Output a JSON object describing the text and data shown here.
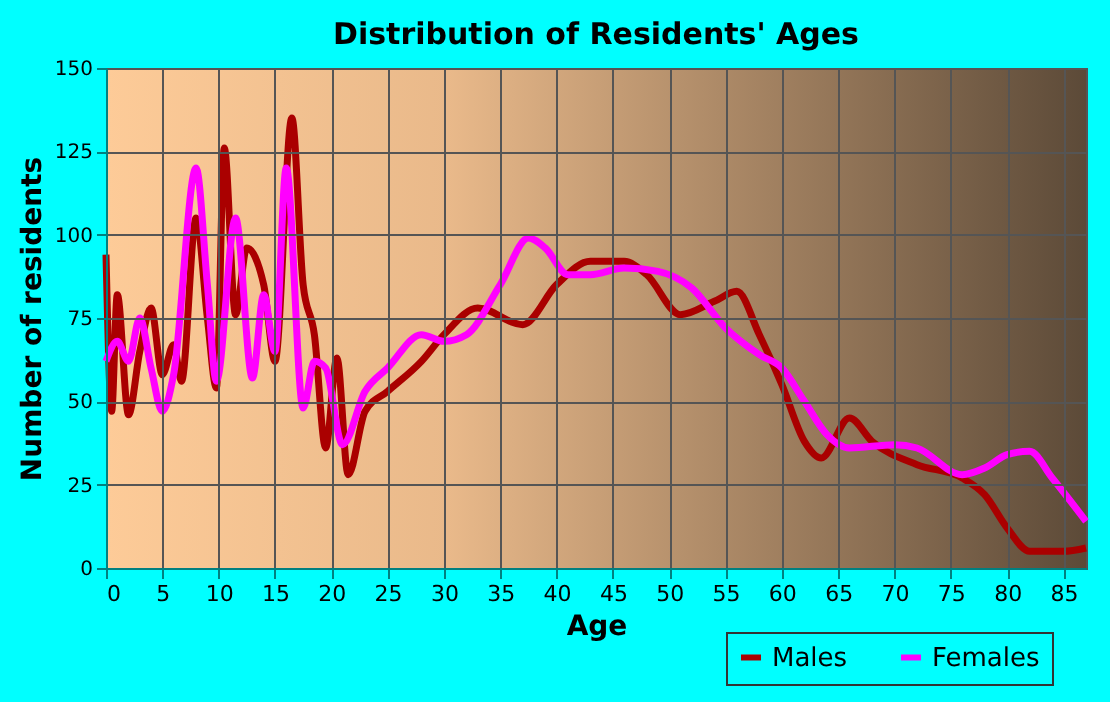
{
  "chart_data": {
    "type": "line",
    "title": "Distribution of Residents' Ages",
    "xlabel": "Age",
    "ylabel": "Number of residents",
    "xlim": [
      0,
      87
    ],
    "xticks": [
      0,
      5,
      10,
      15,
      20,
      25,
      30,
      35,
      40,
      45,
      50,
      55,
      60,
      65,
      70,
      75,
      80,
      85
    ],
    "ylim": [
      0,
      150
    ],
    "yticks": [
      0,
      25,
      50,
      75,
      100,
      125,
      150
    ],
    "grid": true,
    "legend": "bottom right",
    "series": [
      {
        "name": "Males",
        "color": "#aa0000",
        "x": [
          0,
          0.5,
          1,
          2,
          3,
          4,
          5,
          6,
          6.7,
          8,
          9,
          9.8,
          10.5,
          11.5,
          12.5,
          14,
          15,
          16.5,
          17.5,
          18.5,
          19.5,
          20.5,
          21.5,
          23,
          25,
          28,
          30,
          33,
          37,
          40,
          43,
          46,
          48,
          51,
          54,
          56,
          58,
          60,
          62,
          63.5,
          66,
          68,
          72,
          76,
          78,
          80,
          82,
          85,
          87
        ],
        "values": [
          94,
          47,
          82,
          46,
          65,
          78,
          58,
          67,
          56,
          105,
          75,
          54,
          126,
          76,
          96,
          85,
          62,
          135,
          85,
          70,
          36,
          63,
          28,
          47,
          53,
          62,
          70,
          78,
          73,
          85,
          92,
          92,
          88,
          76,
          80,
          83,
          70,
          55,
          38,
          33,
          45,
          38,
          31,
          27,
          22,
          12,
          5,
          5,
          6
        ]
      },
      {
        "name": "Females",
        "color": "#ff00ff",
        "x": [
          0,
          1,
          2,
          3,
          4,
          5,
          6,
          8,
          9,
          9.8,
          11.5,
          13,
          14,
          15,
          16,
          17.5,
          18.5,
          19.5,
          21,
          23,
          25,
          28,
          30,
          32,
          35,
          37.5,
          39,
          41,
          43,
          46,
          49,
          52,
          55,
          58,
          60,
          62,
          64,
          66,
          70,
          72,
          76,
          78,
          80,
          82,
          84,
          87
        ],
        "values": [
          62,
          68,
          62,
          75,
          60,
          47,
          58,
          120,
          85,
          56,
          105,
          57,
          82,
          65,
          120,
          48,
          62,
          60,
          37,
          53,
          60,
          70,
          68,
          70,
          85,
          99,
          96,
          88,
          88,
          90,
          89,
          84,
          72,
          64,
          60,
          50,
          40,
          36,
          37,
          36,
          28,
          30,
          34,
          35,
          27,
          14
        ]
      }
    ]
  }
}
